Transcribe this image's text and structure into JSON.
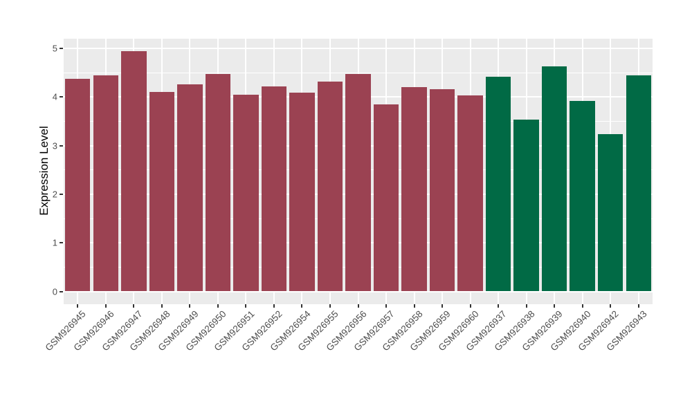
{
  "colors": {
    "page_background": "#FFFFFF",
    "panel_background": "#EBEBEB",
    "gridline": "#FFFFFF",
    "bar_red": "#9B4252",
    "bar_green": "#016A45",
    "axis_text": "#4D4D4D",
    "axis_title": "#000000",
    "tick_mark": "#333333"
  },
  "chart_data": {
    "type": "bar",
    "title": "",
    "xlabel": "",
    "ylabel": "Expression Level",
    "ylim": [
      0,
      5.2
    ],
    "yticks": [
      0,
      1,
      2,
      3,
      4,
      5
    ],
    "minor_yticks": [
      0.5,
      1.5,
      2.5,
      3.5,
      4.5
    ],
    "grid": true,
    "legend_position": "none",
    "x_label_rotation_deg": 45,
    "categories": [
      "GSM926945",
      "GSM926946",
      "GSM926947",
      "GSM926948",
      "GSM926949",
      "GSM926950",
      "GSM926951",
      "GSM926952",
      "GSM926954",
      "GSM926955",
      "GSM926956",
      "GSM926957",
      "GSM926958",
      "GSM926959",
      "GSM926960",
      "GSM926937",
      "GSM926938",
      "GSM926939",
      "GSM926940",
      "GSM926942",
      "GSM926943"
    ],
    "values": [
      4.37,
      4.45,
      4.95,
      4.11,
      4.26,
      4.47,
      4.05,
      4.22,
      4.09,
      4.32,
      4.47,
      3.85,
      4.21,
      4.16,
      4.03,
      4.42,
      3.54,
      4.63,
      3.92,
      3.23,
      4.44
    ],
    "bar_color_keys": [
      "bar_red",
      "bar_red",
      "bar_red",
      "bar_red",
      "bar_red",
      "bar_red",
      "bar_red",
      "bar_red",
      "bar_red",
      "bar_red",
      "bar_red",
      "bar_red",
      "bar_red",
      "bar_red",
      "bar_red",
      "bar_green",
      "bar_green",
      "bar_green",
      "bar_green",
      "bar_green",
      "bar_green"
    ]
  }
}
